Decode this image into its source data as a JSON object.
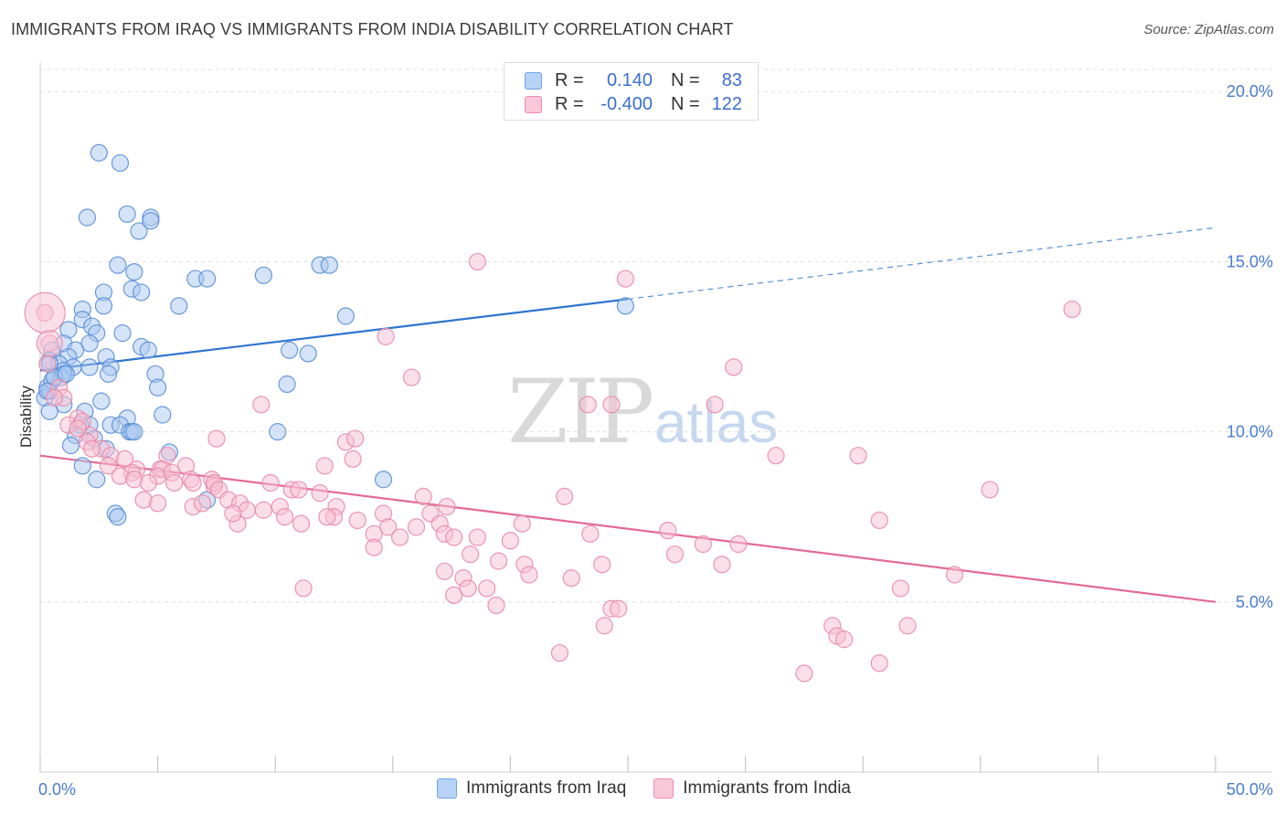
{
  "header": {
    "title": "IMMIGRANTS FROM IRAQ VS IMMIGRANTS FROM INDIA DISABILITY CORRELATION CHART",
    "source": "Source: ZipAtlas.com"
  },
  "watermark": {
    "zip": "ZIP",
    "atlas": "atlas"
  },
  "legend": {
    "rows": [
      {
        "r_label": "R =",
        "r_value": "0.140",
        "n_label": "N =",
        "n_value": "83",
        "color": "#6fa3e8"
      },
      {
        "r_label": "R =",
        "r_value": "-0.400",
        "n_label": "N = ",
        "n_value": "122",
        "color": "#f08aac"
      }
    ]
  },
  "bottom_legend": {
    "iraq": "Immigrants from Iraq",
    "india": "Immigrants from India"
  },
  "colors": {
    "iraq_fill": "#a9c8f0",
    "iraq_stroke": "#5a8fd8",
    "iraq_line": "#2f74d0",
    "india_fill": "#f7bfd1",
    "india_stroke": "#e889a8",
    "india_line": "#e36a96",
    "tick_text": "#4a7bd0",
    "grid": "#dedede"
  },
  "chart_data": {
    "type": "scatter",
    "title": "IMMIGRANTS FROM IRAQ VS IMMIGRANTS FROM INDIA DISABILITY CORRELATION CHART",
    "xlabel": "",
    "ylabel": "Disability",
    "xlim": [
      0,
      50
    ],
    "ylim": [
      0,
      21
    ],
    "x_tick_labels": [
      "0.0%",
      "50.0%"
    ],
    "y_ticks": [
      5,
      10,
      15,
      20
    ],
    "y_tick_labels": [
      "5.0%",
      "10.0%",
      "15.0%",
      "20.0%"
    ],
    "grid": "horizontal dashed",
    "legend_position": "top-center",
    "series": [
      {
        "name": "Immigrants from Iraq",
        "R": 0.14,
        "N": 83,
        "trend": {
          "x0": 0,
          "y0": 11.8,
          "x1": 25,
          "y1": 13.9,
          "dashed_to_x": 50,
          "dashed_to_y": 16.0
        },
        "points": [
          [
            2.5,
            18.2
          ],
          [
            3.4,
            17.9
          ],
          [
            2.0,
            16.3
          ],
          [
            3.7,
            16.4
          ],
          [
            4.7,
            16.3
          ],
          [
            4.2,
            15.9
          ],
          [
            4.7,
            16.2
          ],
          [
            3.3,
            14.9
          ],
          [
            4.0,
            14.7
          ],
          [
            6.6,
            14.5
          ],
          [
            7.1,
            14.5
          ],
          [
            9.5,
            14.6
          ],
          [
            11.9,
            14.9
          ],
          [
            12.3,
            14.9
          ],
          [
            2.7,
            14.1
          ],
          [
            3.9,
            14.2
          ],
          [
            4.3,
            14.1
          ],
          [
            2.7,
            13.7
          ],
          [
            5.9,
            13.7
          ],
          [
            1.8,
            13.6
          ],
          [
            1.8,
            13.3
          ],
          [
            13.0,
            13.4
          ],
          [
            24.9,
            13.7
          ],
          [
            1.2,
            13.0
          ],
          [
            2.2,
            13.1
          ],
          [
            2.4,
            12.9
          ],
          [
            3.5,
            12.9
          ],
          [
            1.0,
            12.6
          ],
          [
            2.1,
            12.6
          ],
          [
            4.3,
            12.5
          ],
          [
            4.6,
            12.4
          ],
          [
            10.6,
            12.4
          ],
          [
            11.4,
            12.3
          ],
          [
            0.5,
            12.4
          ],
          [
            1.5,
            12.4
          ],
          [
            0.4,
            12.1
          ],
          [
            1.2,
            12.2
          ],
          [
            0.8,
            12.0
          ],
          [
            2.8,
            12.2
          ],
          [
            1.4,
            11.9
          ],
          [
            1.0,
            11.8
          ],
          [
            2.1,
            11.9
          ],
          [
            3.0,
            11.9
          ],
          [
            2.9,
            11.7
          ],
          [
            4.9,
            11.7
          ],
          [
            0.6,
            11.6
          ],
          [
            0.9,
            11.6
          ],
          [
            1.0,
            11.7
          ],
          [
            0.3,
            11.3
          ],
          [
            5.0,
            11.3
          ],
          [
            10.5,
            11.4
          ],
          [
            0.2,
            11.0
          ],
          [
            0.4,
            11.2
          ],
          [
            0.5,
            11.5
          ],
          [
            1.0,
            10.8
          ],
          [
            2.6,
            10.9
          ],
          [
            0.4,
            10.6
          ],
          [
            1.9,
            10.6
          ],
          [
            3.7,
            10.4
          ],
          [
            5.2,
            10.5
          ],
          [
            2.1,
            10.2
          ],
          [
            3.0,
            10.2
          ],
          [
            3.4,
            10.2
          ],
          [
            1.7,
            10.2
          ],
          [
            3.8,
            10.0
          ],
          [
            3.9,
            10.0
          ],
          [
            4.0,
            10.0
          ],
          [
            10.1,
            10.0
          ],
          [
            1.5,
            9.9
          ],
          [
            2.3,
            9.8
          ],
          [
            1.3,
            9.6
          ],
          [
            2.8,
            9.5
          ],
          [
            5.5,
            9.4
          ],
          [
            1.8,
            9.0
          ],
          [
            2.4,
            8.6
          ],
          [
            14.6,
            8.6
          ],
          [
            7.1,
            8.0
          ],
          [
            3.2,
            7.6
          ],
          [
            3.3,
            7.5
          ],
          [
            0.4,
            12.0
          ],
          [
            0.6,
            11.6
          ],
          [
            1.1,
            11.7
          ],
          [
            0.3,
            11.2
          ]
        ]
      },
      {
        "name": "Immigrants from India",
        "R": -0.4,
        "N": 122,
        "trend": {
          "x0": 0,
          "y0": 9.3,
          "x1": 50,
          "y1": 5.0
        },
        "points": [
          [
            18.6,
            15.0
          ],
          [
            24.9,
            14.5
          ],
          [
            43.9,
            13.6
          ],
          [
            0.2,
            13.5
          ],
          [
            0.4,
            12.6
          ],
          [
            14.7,
            12.8
          ],
          [
            0.3,
            12.0
          ],
          [
            29.5,
            11.9
          ],
          [
            15.8,
            11.6
          ],
          [
            0.8,
            11.3
          ],
          [
            1.0,
            11.0
          ],
          [
            23.3,
            10.8
          ],
          [
            24.3,
            10.8
          ],
          [
            28.7,
            10.8
          ],
          [
            9.4,
            10.8
          ],
          [
            1.6,
            10.4
          ],
          [
            1.2,
            10.2
          ],
          [
            1.8,
            10.3
          ],
          [
            2.1,
            9.9
          ],
          [
            7.5,
            9.8
          ],
          [
            13.0,
            9.7
          ],
          [
            13.4,
            9.8
          ],
          [
            2.0,
            9.7
          ],
          [
            2.6,
            9.5
          ],
          [
            3.0,
            9.3
          ],
          [
            3.6,
            9.2
          ],
          [
            5.4,
            9.3
          ],
          [
            13.3,
            9.2
          ],
          [
            31.3,
            9.3
          ],
          [
            34.8,
            9.3
          ],
          [
            12.1,
            9.0
          ],
          [
            2.9,
            9.0
          ],
          [
            4.1,
            8.9
          ],
          [
            5.1,
            8.9
          ],
          [
            5.2,
            8.9
          ],
          [
            6.2,
            9.0
          ],
          [
            3.9,
            8.8
          ],
          [
            5.0,
            8.7
          ],
          [
            5.6,
            8.8
          ],
          [
            3.4,
            8.7
          ],
          [
            4.0,
            8.6
          ],
          [
            7.3,
            8.6
          ],
          [
            7.4,
            8.4
          ],
          [
            6.4,
            8.6
          ],
          [
            6.5,
            8.5
          ],
          [
            7.4,
            8.5
          ],
          [
            5.7,
            8.5
          ],
          [
            9.8,
            8.5
          ],
          [
            10.7,
            8.3
          ],
          [
            11.0,
            8.3
          ],
          [
            11.9,
            8.2
          ],
          [
            7.6,
            8.3
          ],
          [
            16.3,
            8.1
          ],
          [
            22.3,
            8.1
          ],
          [
            40.4,
            8.3
          ],
          [
            4.4,
            8.0
          ],
          [
            5.0,
            7.9
          ],
          [
            8.0,
            8.0
          ],
          [
            8.5,
            7.9
          ],
          [
            8.8,
            7.7
          ],
          [
            9.5,
            7.7
          ],
          [
            10.2,
            7.8
          ],
          [
            12.6,
            7.8
          ],
          [
            14.6,
            7.6
          ],
          [
            16.6,
            7.6
          ],
          [
            17.3,
            7.8
          ],
          [
            6.5,
            7.8
          ],
          [
            10.4,
            7.5
          ],
          [
            12.5,
            7.5
          ],
          [
            13.5,
            7.4
          ],
          [
            14.8,
            7.2
          ],
          [
            16.0,
            7.2
          ],
          [
            17.0,
            7.3
          ],
          [
            20.5,
            7.3
          ],
          [
            26.7,
            7.1
          ],
          [
            35.7,
            7.4
          ],
          [
            8.4,
            7.3
          ],
          [
            11.1,
            7.3
          ],
          [
            14.2,
            7.0
          ],
          [
            15.3,
            6.9
          ],
          [
            17.2,
            7.0
          ],
          [
            17.6,
            6.9
          ],
          [
            18.6,
            6.9
          ],
          [
            20.0,
            6.8
          ],
          [
            23.4,
            7.0
          ],
          [
            28.2,
            6.7
          ],
          [
            29.7,
            6.7
          ],
          [
            14.2,
            6.6
          ],
          [
            18.3,
            6.4
          ],
          [
            27.0,
            6.4
          ],
          [
            19.5,
            6.2
          ],
          [
            20.6,
            6.1
          ],
          [
            23.9,
            6.1
          ],
          [
            29.0,
            6.1
          ],
          [
            17.2,
            5.9
          ],
          [
            18.0,
            5.7
          ],
          [
            20.8,
            5.8
          ],
          [
            22.6,
            5.7
          ],
          [
            38.9,
            5.8
          ],
          [
            11.2,
            5.4
          ],
          [
            17.6,
            5.2
          ],
          [
            18.2,
            5.4
          ],
          [
            19.0,
            5.4
          ],
          [
            36.6,
            5.4
          ],
          [
            19.4,
            4.9
          ],
          [
            24.3,
            4.8
          ],
          [
            24.6,
            4.8
          ],
          [
            24.0,
            4.3
          ],
          [
            33.7,
            4.3
          ],
          [
            36.9,
            4.3
          ],
          [
            33.9,
            4.0
          ],
          [
            34.2,
            3.9
          ],
          [
            22.1,
            3.5
          ],
          [
            35.7,
            3.2
          ],
          [
            32.5,
            2.9
          ],
          [
            0.6,
            11.0
          ],
          [
            1.6,
            10.1
          ],
          [
            2.2,
            9.5
          ],
          [
            4.6,
            8.5
          ],
          [
            6.9,
            7.9
          ],
          [
            8.2,
            7.6
          ],
          [
            12.2,
            7.5
          ]
        ]
      }
    ]
  }
}
